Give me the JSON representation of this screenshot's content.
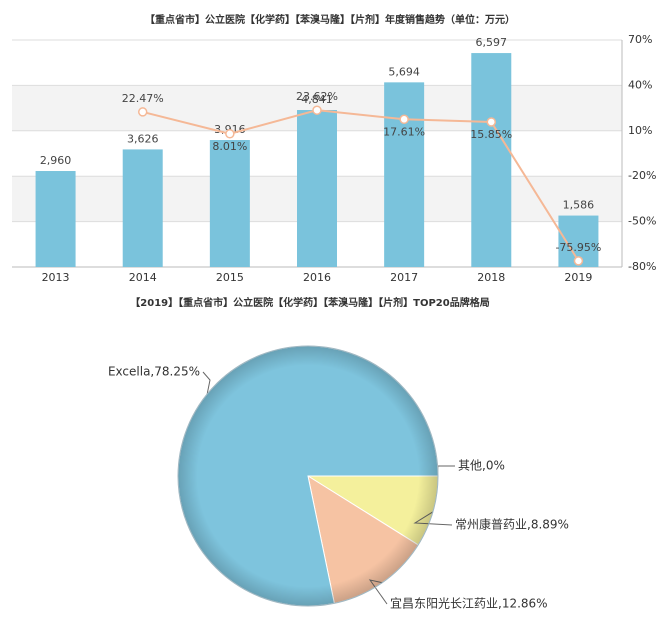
{
  "chart_data": [
    {
      "type": "bar",
      "title": "【重点省市】公立医院【化学药】【苯溴马隆】【片剂】年度销售趋势（单位：万元）",
      "categories": [
        "2013",
        "2014",
        "2015",
        "2016",
        "2017",
        "2018",
        "2019"
      ],
      "ylim": [
        0,
        7000
      ],
      "y2lim": [
        -80,
        70
      ],
      "y2ticks": [
        {
          "value": 70,
          "label": "70%"
        },
        {
          "value": 40,
          "label": "40%"
        },
        {
          "value": 10,
          "label": "10%"
        },
        {
          "value": -20,
          "label": "-20%"
        },
        {
          "value": -50,
          "label": "-50%"
        },
        {
          "value": -80,
          "label": "-80%"
        }
      ],
      "grid": true,
      "series": [
        {
          "type": "bar",
          "color": "#7ac3dc",
          "values": [
            2960,
            3626,
            3916,
            4841,
            5694,
            6597,
            1586
          ],
          "value_labels": [
            "2,960",
            "3,626",
            "3,916",
            "4,841",
            "5,694",
            "6,597",
            "1,586"
          ]
        },
        {
          "type": "line",
          "axis": "y2",
          "color": "#f5b896",
          "values": [
            null,
            22.47,
            8.01,
            23.62,
            17.61,
            15.85,
            -75.95
          ],
          "value_labels": [
            null,
            "22.47%",
            "8.01%",
            "23.62%",
            "17.61%",
            "15.85%",
            "-75.95%"
          ]
        }
      ]
    },
    {
      "type": "pie",
      "title": "【2019】【重点省市】公立医院【化学药】【苯溴马隆】【片剂】TOP20品牌格局",
      "values": [
        0,
        8.89,
        12.86,
        78.25
      ],
      "value_labels": [
        "其他,0%",
        "常州康普药业,8.89%",
        "宜昌东阳光长江药业,12.86%",
        "Excella,78.25%"
      ],
      "colors": [
        "#e8e8e8",
        "#f4f09c",
        "#f6c3a3",
        "#7ec4dd"
      ]
    }
  ]
}
